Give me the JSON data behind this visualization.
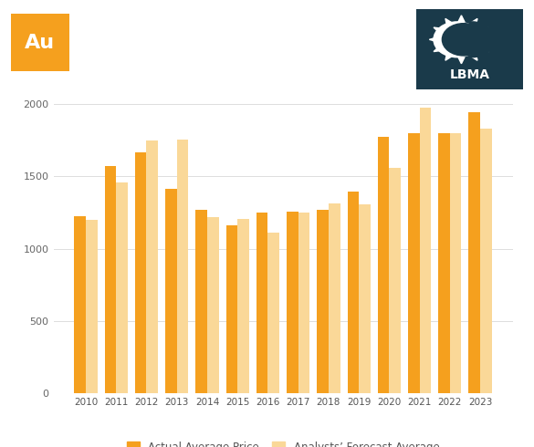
{
  "years": [
    2010,
    2011,
    2012,
    2013,
    2014,
    2015,
    2016,
    2017,
    2018,
    2019,
    2020,
    2021,
    2022,
    2023
  ],
  "actual": [
    1225,
    1570,
    1668,
    1410,
    1265,
    1158,
    1248,
    1258,
    1270,
    1392,
    1770,
    1800,
    1800,
    1943
  ],
  "forecast": [
    1200,
    1455,
    1750,
    1752,
    1220,
    1205,
    1108,
    1252,
    1315,
    1308,
    1555,
    1972,
    1800,
    1830
  ],
  "actual_color": "#F5A01E",
  "forecast_color": "#FАДА98",
  "background_color": "#FFFFFF",
  "grid_color": "#DDDDDD",
  "ylim": [
    0,
    2100
  ],
  "yticks": [
    0,
    500,
    1000,
    1500,
    2000
  ],
  "legend_actual": "Actual Average Price",
  "legend_forecast": "Analysts’ Forecast Average",
  "au_bg": "#F5A01E",
  "au_text": "Au",
  "lbma_bg": "#1A3A4A"
}
